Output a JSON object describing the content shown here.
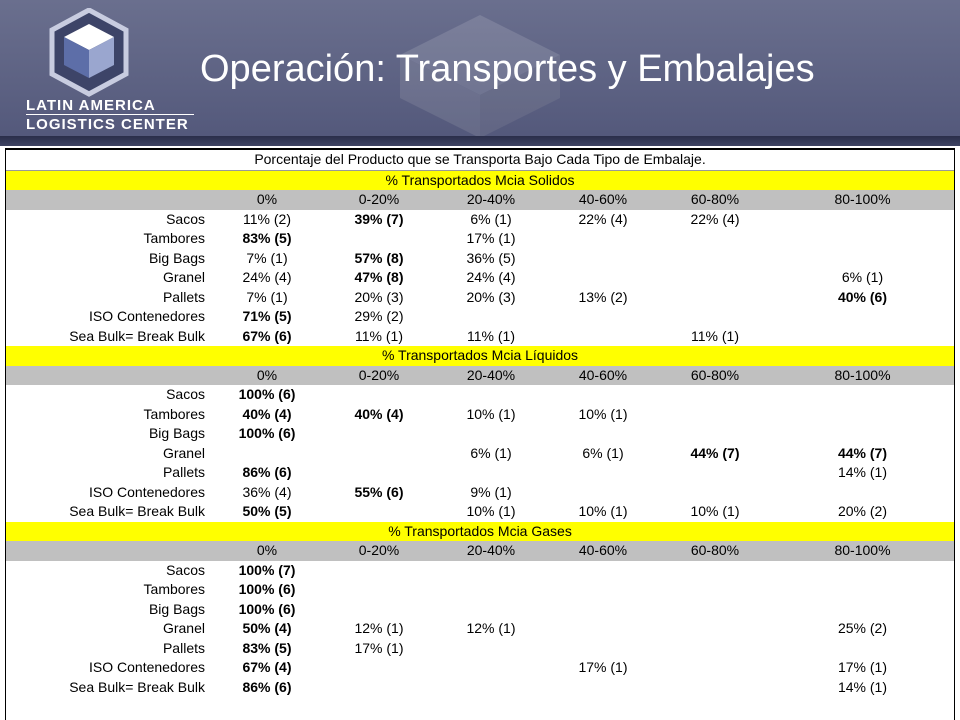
{
  "header": {
    "logo_line1": "LATIN AMERICA",
    "logo_line2": "LOGISTICS CENTER",
    "title": "Operación: Transportes y Embalajes"
  },
  "table": {
    "main_title": "Porcentaje del Producto que se Transporta Bajo Cada Tipo de Embalaje.",
    "columns": [
      "0%",
      "0-20%",
      "20-40%",
      "40-60%",
      "60-80%",
      "80-100%"
    ],
    "sections": [
      {
        "title": "% Transportados Mcia Solidos",
        "rows": [
          {
            "label": "Sacos",
            "cells": [
              {
                "v": "11% (2)",
                "b": false
              },
              {
                "v": "39% (7)",
                "b": true
              },
              {
                "v": "6% (1)",
                "b": false
              },
              {
                "v": "22% (4)",
                "b": false
              },
              {
                "v": "22% (4)",
                "b": false
              },
              {
                "v": "",
                "b": false
              }
            ]
          },
          {
            "label": "Tambores",
            "cells": [
              {
                "v": "83% (5)",
                "b": true
              },
              {
                "v": "",
                "b": false
              },
              {
                "v": "17% (1)",
                "b": false
              },
              {
                "v": "",
                "b": false
              },
              {
                "v": "",
                "b": false
              },
              {
                "v": "",
                "b": false
              }
            ]
          },
          {
            "label": "Big Bags",
            "cells": [
              {
                "v": "7% (1)",
                "b": false
              },
              {
                "v": "57% (8)",
                "b": true
              },
              {
                "v": "36% (5)",
                "b": false
              },
              {
                "v": "",
                "b": false
              },
              {
                "v": "",
                "b": false
              },
              {
                "v": "",
                "b": false
              }
            ]
          },
          {
            "label": "Granel",
            "cells": [
              {
                "v": "24% (4)",
                "b": false
              },
              {
                "v": "47% (8)",
                "b": true
              },
              {
                "v": "24% (4)",
                "b": false
              },
              {
                "v": "",
                "b": false
              },
              {
                "v": "",
                "b": false
              },
              {
                "v": "6% (1)",
                "b": false
              }
            ]
          },
          {
            "label": "Pallets",
            "cells": [
              {
                "v": "7% (1)",
                "b": false
              },
              {
                "v": "20% (3)",
                "b": false
              },
              {
                "v": "20% (3)",
                "b": false
              },
              {
                "v": "13% (2)",
                "b": false
              },
              {
                "v": "",
                "b": false
              },
              {
                "v": "40% (6)",
                "b": true
              }
            ]
          },
          {
            "label": "ISO Contenedores",
            "cells": [
              {
                "v": "71% (5)",
                "b": true
              },
              {
                "v": "29% (2)",
                "b": false
              },
              {
                "v": "",
                "b": false
              },
              {
                "v": "",
                "b": false
              },
              {
                "v": "",
                "b": false
              },
              {
                "v": "",
                "b": false
              }
            ]
          },
          {
            "label": "Sea Bulk= Break Bulk",
            "cells": [
              {
                "v": "67% (6)",
                "b": true
              },
              {
                "v": "11% (1)",
                "b": false
              },
              {
                "v": "11% (1)",
                "b": false
              },
              {
                "v": "",
                "b": false
              },
              {
                "v": "11% (1)",
                "b": false
              },
              {
                "v": "",
                "b": false
              }
            ]
          }
        ]
      },
      {
        "title": "% Transportados Mcia Líquidos",
        "rows": [
          {
            "label": "Sacos",
            "cells": [
              {
                "v": "100% (6)",
                "b": true
              },
              {
                "v": "",
                "b": false
              },
              {
                "v": "",
                "b": false
              },
              {
                "v": "",
                "b": false
              },
              {
                "v": "",
                "b": false
              },
              {
                "v": "",
                "b": false
              }
            ]
          },
          {
            "label": "Tambores",
            "cells": [
              {
                "v": "40% (4)",
                "b": true
              },
              {
                "v": "40% (4)",
                "b": true
              },
              {
                "v": "10% (1)",
                "b": false
              },
              {
                "v": "10% (1)",
                "b": false
              },
              {
                "v": "",
                "b": false
              },
              {
                "v": "",
                "b": false
              }
            ]
          },
          {
            "label": "Big Bags",
            "cells": [
              {
                "v": "100% (6)",
                "b": true
              },
              {
                "v": "",
                "b": false
              },
              {
                "v": "",
                "b": false
              },
              {
                "v": "",
                "b": false
              },
              {
                "v": "",
                "b": false
              },
              {
                "v": "",
                "b": false
              }
            ]
          },
          {
            "label": "Granel",
            "cells": [
              {
                "v": "",
                "b": false
              },
              {
                "v": "",
                "b": false
              },
              {
                "v": "6% (1)",
                "b": false
              },
              {
                "v": "6% (1)",
                "b": false
              },
              {
                "v": "44% (7)",
                "b": true
              },
              {
                "v": "44% (7)",
                "b": true
              }
            ]
          },
          {
            "label": "Pallets",
            "cells": [
              {
                "v": "86% (6)",
                "b": true
              },
              {
                "v": "",
                "b": false
              },
              {
                "v": "",
                "b": false
              },
              {
                "v": "",
                "b": false
              },
              {
                "v": "",
                "b": false
              },
              {
                "v": "14% (1)",
                "b": false
              }
            ]
          },
          {
            "label": "ISO Contenedores",
            "cells": [
              {
                "v": "36% (4)",
                "b": false
              },
              {
                "v": "55% (6)",
                "b": true
              },
              {
                "v": "9% (1)",
                "b": false
              },
              {
                "v": "",
                "b": false
              },
              {
                "v": "",
                "b": false
              },
              {
                "v": "",
                "b": false
              }
            ]
          },
          {
            "label": "Sea Bulk= Break Bulk",
            "cells": [
              {
                "v": "50% (5)",
                "b": true
              },
              {
                "v": "",
                "b": false
              },
              {
                "v": "10% (1)",
                "b": false
              },
              {
                "v": "10% (1)",
                "b": false
              },
              {
                "v": "10% (1)",
                "b": false
              },
              {
                "v": "20% (2)",
                "b": false
              }
            ]
          }
        ]
      },
      {
        "title": "% Transportados Mcia Gases",
        "rows": [
          {
            "label": "Sacos",
            "cells": [
              {
                "v": "100% (7)",
                "b": true
              },
              {
                "v": "",
                "b": false
              },
              {
                "v": "",
                "b": false
              },
              {
                "v": "",
                "b": false
              },
              {
                "v": "",
                "b": false
              },
              {
                "v": "",
                "b": false
              }
            ]
          },
          {
            "label": "Tambores",
            "cells": [
              {
                "v": "100% (6)",
                "b": true
              },
              {
                "v": "",
                "b": false
              },
              {
                "v": "",
                "b": false
              },
              {
                "v": "",
                "b": false
              },
              {
                "v": "",
                "b": false
              },
              {
                "v": "",
                "b": false
              }
            ]
          },
          {
            "label": "Big Bags",
            "cells": [
              {
                "v": "100% (6)",
                "b": true
              },
              {
                "v": "",
                "b": false
              },
              {
                "v": "",
                "b": false
              },
              {
                "v": "",
                "b": false
              },
              {
                "v": "",
                "b": false
              },
              {
                "v": "",
                "b": false
              }
            ]
          },
          {
            "label": "Granel",
            "cells": [
              {
                "v": "50% (4)",
                "b": true
              },
              {
                "v": "12% (1)",
                "b": false
              },
              {
                "v": "12% (1)",
                "b": false
              },
              {
                "v": "",
                "b": false
              },
              {
                "v": "",
                "b": false
              },
              {
                "v": "25% (2)",
                "b": false
              }
            ]
          },
          {
            "label": "Pallets",
            "cells": [
              {
                "v": "83% (5)",
                "b": true
              },
              {
                "v": "17% (1)",
                "b": false
              },
              {
                "v": "",
                "b": false
              },
              {
                "v": "",
                "b": false
              },
              {
                "v": "",
                "b": false
              },
              {
                "v": "",
                "b": false
              }
            ]
          },
          {
            "label": "ISO Contenedores",
            "cells": [
              {
                "v": "67% (4)",
                "b": true
              },
              {
                "v": "",
                "b": false
              },
              {
                "v": "",
                "b": false
              },
              {
                "v": "17% (1)",
                "b": false
              },
              {
                "v": "",
                "b": false
              },
              {
                "v": "17% (1)",
                "b": false
              }
            ]
          },
          {
            "label": "Sea Bulk= Break Bulk",
            "cells": [
              {
                "v": "86% (6)",
                "b": true
              },
              {
                "v": "",
                "b": false
              },
              {
                "v": "",
                "b": false
              },
              {
                "v": "",
                "b": false
              },
              {
                "v": "",
                "b": false
              },
              {
                "v": "14% (1)",
                "b": false
              }
            ]
          }
        ]
      }
    ]
  }
}
